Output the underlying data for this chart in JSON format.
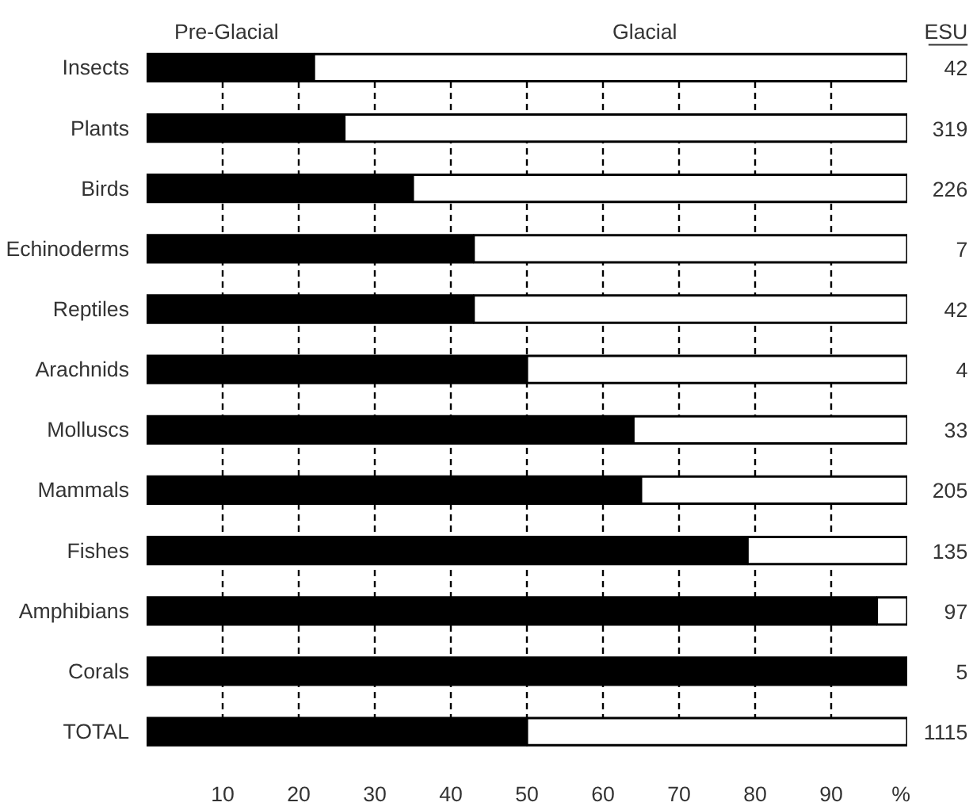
{
  "chart_data": {
    "type": "bar",
    "orientation": "horizontal",
    "stacked": true,
    "categories": [
      "Insects",
      "Plants",
      "Birds",
      "Echinoderms",
      "Reptiles",
      "Arachnids",
      "Molluscs",
      "Mammals",
      "Fishes",
      "Amphibians",
      "Corals",
      "TOTAL"
    ],
    "series": [
      {
        "name": "Pre-Glacial",
        "color": "#000000",
        "values": [
          22,
          26,
          35,
          43,
          43,
          50,
          64,
          65,
          79,
          96,
          100,
          50
        ]
      },
      {
        "name": "Glacial",
        "color": "#ffffff",
        "values": [
          78,
          74,
          65,
          57,
          57,
          50,
          36,
          35,
          21,
          4,
          0,
          50
        ]
      }
    ],
    "xlim": [
      0,
      100
    ],
    "xticks": [
      10,
      20,
      30,
      40,
      50,
      60,
      70,
      80,
      90,
      {
        "value": 100,
        "label": "%"
      }
    ],
    "grid": "x",
    "legend": "top",
    "y2label": "ESU",
    "annotations": [
      "42",
      "319",
      "226",
      "7",
      "42",
      "4",
      "33",
      "205",
      "135",
      "97",
      "5",
      "1115"
    ]
  }
}
